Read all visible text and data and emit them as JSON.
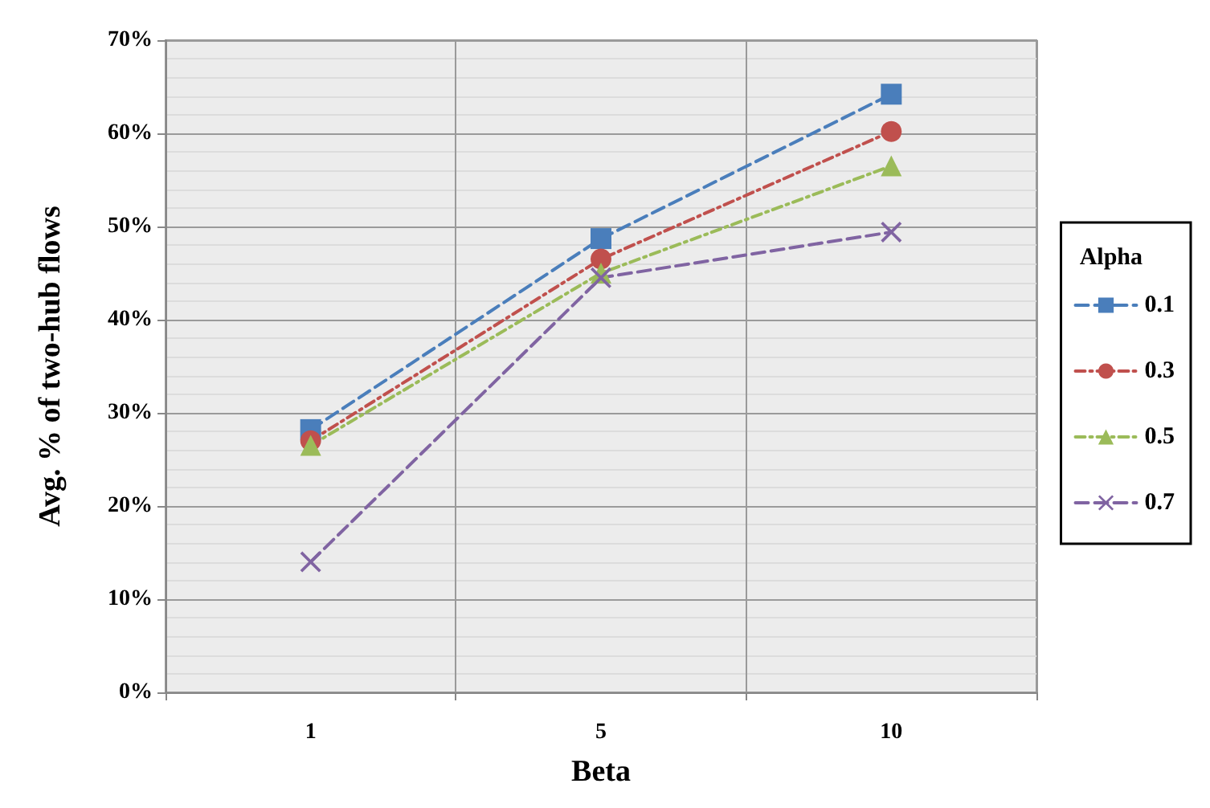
{
  "chart_data": {
    "type": "line",
    "xlabel": "Beta",
    "ylabel": "Avg. % of two-hub flows",
    "legend_title": "Alpha",
    "categories": [
      "1",
      "5",
      "10"
    ],
    "series": [
      {
        "name": "0.1",
        "color": "#4a7ebb",
        "values": [
          28.2,
          48.7,
          64.2
        ],
        "marker": "square",
        "line_style": "dashed"
      },
      {
        "name": "0.3",
        "color": "#c0504d",
        "values": [
          27,
          46.5,
          60.2
        ],
        "marker": "circle",
        "line_style": "dotted"
      },
      {
        "name": "0.5",
        "color": "#9bbb59",
        "values": [
          26.5,
          45,
          56.5
        ],
        "marker": "triangle",
        "line_style": "dotted"
      },
      {
        "name": "0.7",
        "color": "#8064a2",
        "values": [
          14,
          44.5,
          49.4
        ],
        "marker": "cross",
        "line_style": "dashed"
      }
    ],
    "ylim": [
      0,
      70
    ],
    "yticks": [
      {
        "value": 0,
        "label": "0%"
      },
      {
        "value": 10,
        "label": "10%"
      },
      {
        "value": 20,
        "label": "20%"
      },
      {
        "value": 30,
        "label": "30%"
      },
      {
        "value": 40,
        "label": "40%"
      },
      {
        "value": 50,
        "label": "50%"
      },
      {
        "value": 60,
        "label": "60%"
      },
      {
        "value": 70,
        "label": "70%"
      }
    ],
    "grid": true,
    "legend": "right"
  }
}
